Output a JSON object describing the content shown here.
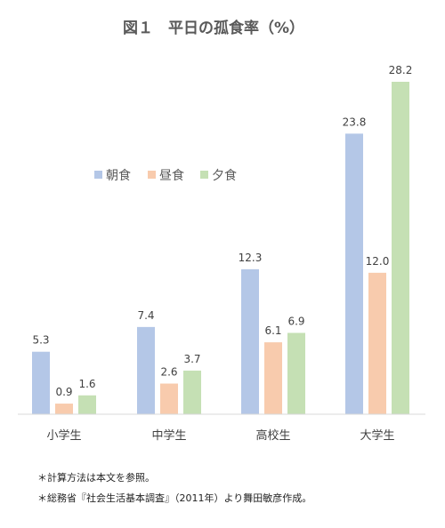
{
  "chart_data": {
    "type": "bar",
    "title": "図１　平日の孤食率（%）",
    "categories": [
      "小学生",
      "中学生",
      "高校生",
      "大学生"
    ],
    "series": [
      {
        "name": "朝食",
        "color": "#b4c7e7",
        "values": [
          5.3,
          7.4,
          12.3,
          23.8
        ]
      },
      {
        "name": "昼食",
        "color": "#f8cbad",
        "values": [
          0.9,
          2.6,
          6.1,
          12.0
        ]
      },
      {
        "name": "夕食",
        "color": "#c5e0b4",
        "values": [
          1.6,
          3.7,
          6.9,
          28.2
        ]
      }
    ],
    "ylim": [
      0,
      28.2
    ],
    "legend_position": "upper-left",
    "grid": false
  },
  "footnotes": [
    "＊計算方法は本文を参照。",
    "＊総務省『社会生活基本調査』（2011年）より舞田敏彦作成。"
  ]
}
